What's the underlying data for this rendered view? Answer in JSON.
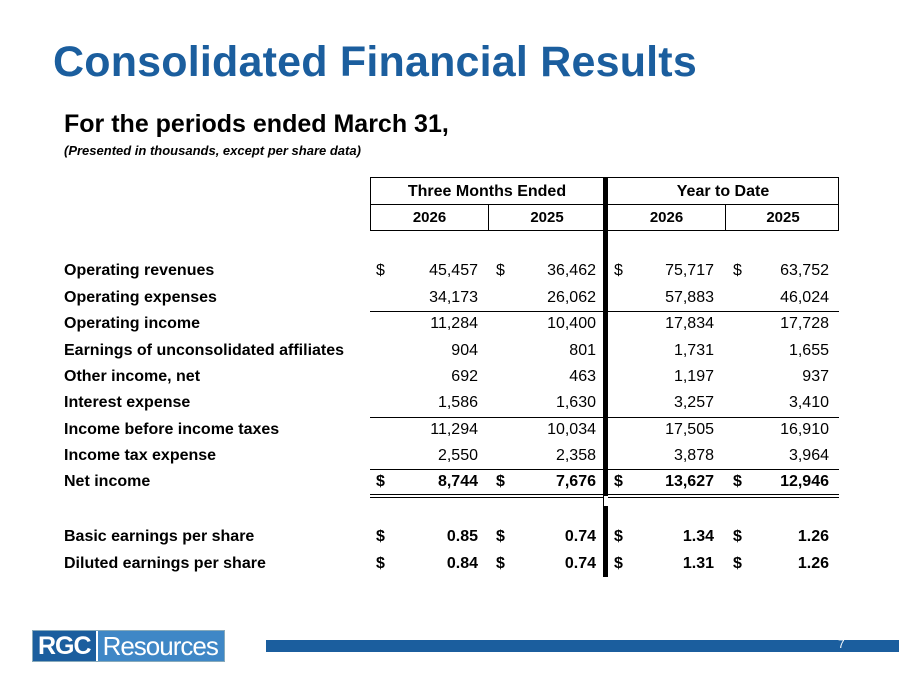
{
  "title": "Consolidated Financial Results",
  "subtitle": "For the periods ended March 31,",
  "note": "(Presented in thousands, except per share data)",
  "headers": {
    "three_months": "Three Months Ended",
    "ytd": "Year to Date",
    "years": [
      "2026",
      "2025",
      "2026",
      "2025"
    ]
  },
  "rows": [
    {
      "label": "Operating revenues",
      "values": [
        "45,457",
        "36,462",
        "75,717",
        "63,752"
      ],
      "currency": "$"
    },
    {
      "label": "Operating expenses",
      "values": [
        "34,173",
        "26,062",
        "57,883",
        "46,024"
      ]
    },
    {
      "label": "Operating income",
      "values": [
        "11,284",
        "10,400",
        "17,834",
        "17,728"
      ]
    },
    {
      "label": "Earnings of unconsolidated affiliates",
      "values": [
        "904",
        "801",
        "1,731",
        "1,655"
      ]
    },
    {
      "label": "Other income, net",
      "values": [
        "692",
        "463",
        "1,197",
        "937"
      ]
    },
    {
      "label": "Interest expense",
      "values": [
        "1,586",
        "1,630",
        "3,257",
        "3,410"
      ]
    },
    {
      "label": "Income before income taxes",
      "values": [
        "11,294",
        "10,034",
        "17,505",
        "16,910"
      ]
    },
    {
      "label": "Income tax expense",
      "values": [
        "2,550",
        "2,358",
        "3,878",
        "3,964"
      ]
    },
    {
      "label": "Net income",
      "values": [
        "8,744",
        "7,676",
        "13,627",
        "12,946"
      ],
      "currency": "$"
    },
    {
      "label": "Basic earnings per share",
      "values": [
        "0.85",
        "0.74",
        "1.34",
        "1.26"
      ],
      "currency": "$"
    },
    {
      "label": "Diluted earnings per share",
      "values": [
        "0.84",
        "0.74",
        "1.31",
        "1.26"
      ],
      "currency": "$"
    }
  ],
  "footer": {
    "logo_part1": "RGC",
    "logo_part2": "Resources",
    "page_number": "7"
  },
  "colors": {
    "brand_dark": "#1b5e9e",
    "brand_light": "#3f87c6"
  }
}
